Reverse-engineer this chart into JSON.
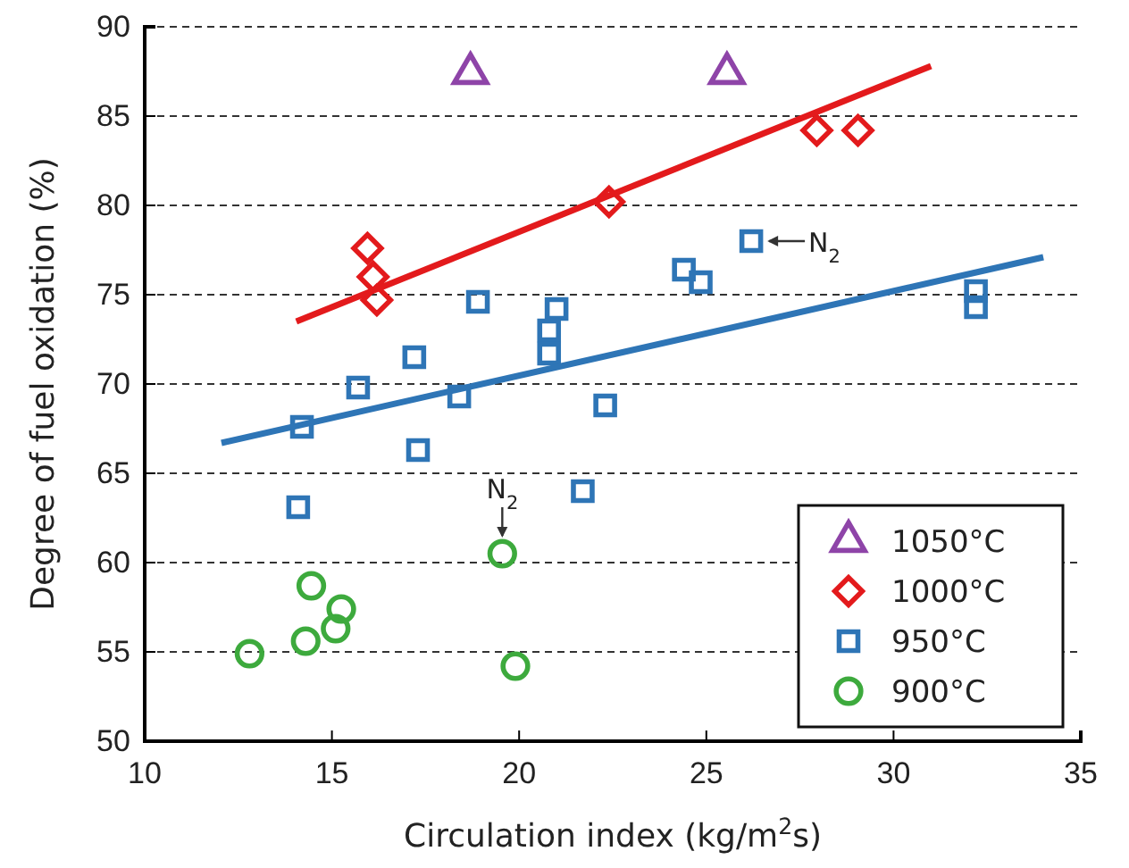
{
  "chart_data": {
    "type": "scatter",
    "xlabel": "Circulation index (kg/m$^{2}$s)",
    "ylabel": "Degree of fuel oxidation (%)",
    "xlim": [
      10,
      35
    ],
    "xticks": [
      10,
      15,
      20,
      25,
      30,
      35
    ],
    "ylim": [
      50,
      90
    ],
    "yticks": [
      50,
      55,
      60,
      65,
      70,
      75,
      80,
      85,
      90
    ],
    "grid": "y",
    "legend": "bottom right",
    "series": [
      {
        "name": "1050°C",
        "color": "#8e44a8",
        "marker": "triangle",
        "x": [
          18.7,
          25.55
        ],
        "values": [
          87.4,
          87.4
        ]
      },
      {
        "name": "1000°C",
        "color": "#e31a1c",
        "marker": "diamond",
        "x": [
          15.95,
          16.1,
          16.2,
          22.4,
          27.95,
          29.05
        ],
        "values": [
          77.6,
          76,
          74.7,
          80.2,
          84.2,
          84.2
        ]
      },
      {
        "name": "950°C",
        "color": "#2e75b6",
        "marker": "square",
        "x": [
          18.9,
          21.0,
          20.8,
          20.8,
          17.2,
          15.7,
          18.4,
          14.2,
          17.3,
          14.1,
          22.3,
          21.7,
          24.4,
          24.85,
          26.2,
          32.2,
          32.2
        ],
        "values": [
          74.6,
          74.2,
          73.0,
          71.7,
          71.5,
          69.8,
          69.3,
          67.6,
          66.3,
          63.1,
          68.8,
          64.0,
          76.4,
          75.7,
          78.0,
          75.2,
          74.3
        ]
      },
      {
        "name": "900°C",
        "color": "#3daa3d",
        "marker": "circle",
        "x": [
          12.8,
          14.3,
          14.45,
          15.1,
          15.25,
          19.55,
          19.9
        ],
        "values": [
          54.9,
          55.6,
          58.7,
          56.3,
          57.4,
          60.5,
          54.2
        ]
      },
      {
        "type": "line",
        "color": "#e31a1c",
        "x": [
          14.05,
          31.0
        ],
        "values": [
          73.5,
          87.8
        ]
      },
      {
        "type": "line",
        "color": "#2e75b6",
        "x": [
          12.05,
          34.0
        ],
        "values": [
          66.7,
          77.1
        ]
      }
    ],
    "annotations": [
      {
        "text": "N$_{2}$",
        "x": 26.2,
        "y": 78.0
      },
      {
        "text": "N$_{2}$",
        "x": 19.55,
        "y": 60.5
      }
    ]
  }
}
